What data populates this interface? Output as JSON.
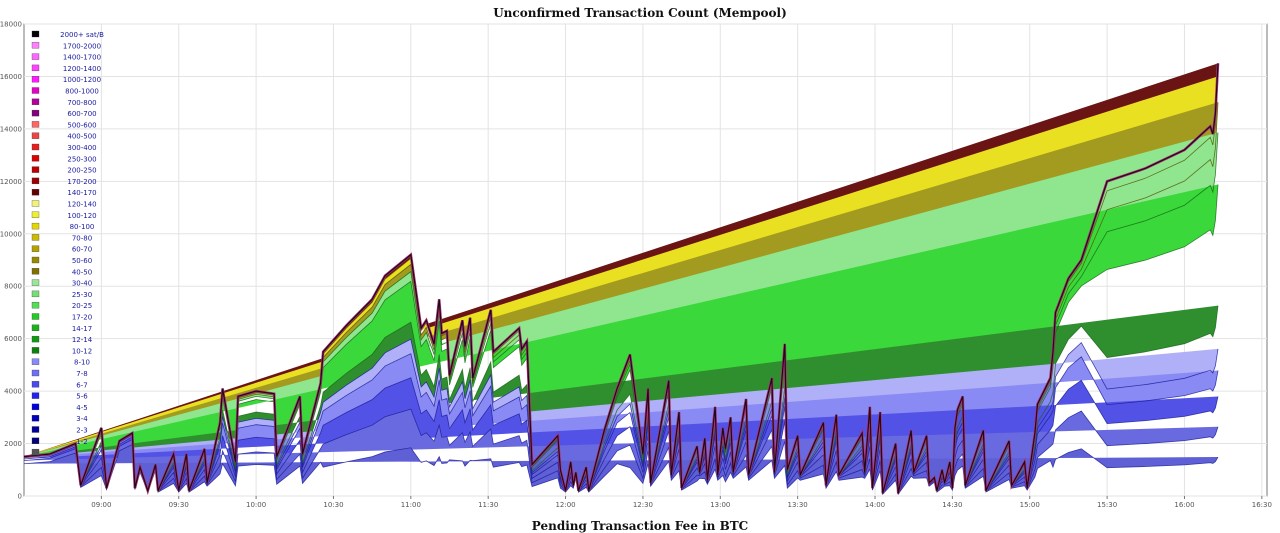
{
  "title": "Unconfirmed Transaction Count (Mempool)",
  "next_chart_title": "Pending Transaction Fee in BTC",
  "chart_data": {
    "type": "area",
    "stacked": true,
    "title": "Unconfirmed Transaction Count (Mempool)",
    "xlabel": "",
    "ylabel": "",
    "ylim": [
      0,
      18000
    ],
    "xlim": [
      "08:30",
      "16:32"
    ],
    "yticks": [
      "0",
      "2000",
      "4000",
      "6000",
      "8000",
      "10000",
      "12000",
      "14000",
      "16000",
      "18000"
    ],
    "xticks": [
      "09:00",
      "09:30",
      "10:00",
      "10:30",
      "11:00",
      "11:30",
      "12:00",
      "12:30",
      "13:00",
      "13:30",
      "14:00",
      "14:30",
      "15:00",
      "15:30",
      "16:00",
      "16:30"
    ],
    "grid": true,
    "legend_position": "top-left",
    "legend": [
      {
        "label": "2000+ sat/B",
        "color": "#000000"
      },
      {
        "label": "1700-2000",
        "color": "#ff80ff"
      },
      {
        "label": "1400-1700",
        "color": "#ff66ff"
      },
      {
        "label": "1200-1400",
        "color": "#ff40ff"
      },
      {
        "label": "1000-1200",
        "color": "#ff1aff"
      },
      {
        "label": "800-1000",
        "color": "#e600c8"
      },
      {
        "label": "700-800",
        "color": "#b30099"
      },
      {
        "label": "600-700",
        "color": "#800080"
      },
      {
        "label": "500-600",
        "color": "#ff6666"
      },
      {
        "label": "400-500",
        "color": "#ee4444"
      },
      {
        "label": "300-400",
        "color": "#e62020"
      },
      {
        "label": "250-300",
        "color": "#dd0000"
      },
      {
        "label": "200-250",
        "color": "#bb0000"
      },
      {
        "label": "170-200",
        "color": "#990000"
      },
      {
        "label": "140-170",
        "color": "#660000"
      },
      {
        "label": "120-140",
        "color": "#f2f27a"
      },
      {
        "label": "100-120",
        "color": "#eeee33"
      },
      {
        "label": "80-100",
        "color": "#e6d600"
      },
      {
        "label": "70-80",
        "color": "#ccbb00"
      },
      {
        "label": "60-70",
        "color": "#b3a200"
      },
      {
        "label": "50-60",
        "color": "#998800"
      },
      {
        "label": "40-50",
        "color": "#7f7000"
      },
      {
        "label": "30-40",
        "color": "#99e699"
      },
      {
        "label": "25-30",
        "color": "#77dd77"
      },
      {
        "label": "20-25",
        "color": "#55dd55"
      },
      {
        "label": "17-20",
        "color": "#22cc22"
      },
      {
        "label": "14-17",
        "color": "#19b319"
      },
      {
        "label": "12-14",
        "color": "#129912"
      },
      {
        "label": "10-12",
        "color": "#0c800c"
      },
      {
        "label": "8-10",
        "color": "#8888ff"
      },
      {
        "label": "7-8",
        "color": "#6e6ef5"
      },
      {
        "label": "6-7",
        "color": "#4a4aee"
      },
      {
        "label": "5-6",
        "color": "#2222ee"
      },
      {
        "label": "4-5",
        "color": "#0000dd"
      },
      {
        "label": "3-4",
        "color": "#0000bb"
      },
      {
        "label": "2-3",
        "color": "#000099"
      },
      {
        "label": "1-2",
        "color": "#000077"
      },
      {
        "label": "",
        "color": "#555555"
      }
    ],
    "bands": [
      {
        "name": "1-2",
        "color": "#5f5fd6"
      },
      {
        "name": "2-3",
        "color": "#6a6ae0"
      },
      {
        "name": "3-5",
        "color": "#5252e6"
      },
      {
        "name": "5-8",
        "color": "#8a8af5"
      },
      {
        "name": "8-10",
        "color": "#b0b0f8"
      },
      {
        "name": "10-14",
        "color": "#2f8f2f"
      },
      {
        "name": "14-20",
        "color": "#3ad83a"
      },
      {
        "name": "20-40",
        "color": "#8fe68f"
      },
      {
        "name": "40-80",
        "color": "#a39a20"
      },
      {
        "name": "80-140",
        "color": "#e8e020"
      },
      {
        "name": "140+",
        "color": "#6b1414"
      }
    ],
    "x": [
      "08:30",
      "08:40",
      "08:45",
      "08:50",
      "08:52",
      "09:00",
      "09:02",
      "09:07",
      "09:12",
      "09:13",
      "09:15",
      "09:18",
      "09:21",
      "09:22",
      "09:28",
      "09:30",
      "09:33",
      "09:34",
      "09:40",
      "09:41",
      "09:46",
      "09:47",
      "09:52",
      "09:53",
      "10:00",
      "10:07",
      "10:08",
      "10:17",
      "10:18",
      "10:25",
      "10:26",
      "10:35",
      "10:45",
      "10:50",
      "11:00",
      "11:04",
      "11:06",
      "11:09",
      "11:11",
      "11:12",
      "11:14",
      "11:15",
      "11:20",
      "11:21",
      "11:23",
      "11:24",
      "11:31",
      "11:32",
      "11:42",
      "11:43",
      "11:45",
      "11:47",
      "11:57",
      "11:58",
      "12:00",
      "12:02",
      "12:03",
      "12:04",
      "12:05",
      "12:08",
      "12:09",
      "12:15",
      "12:20",
      "12:25",
      "12:30",
      "12:32",
      "12:33",
      "12:40",
      "12:41",
      "12:44",
      "12:45",
      "12:51",
      "12:52",
      "12:54",
      "12:55",
      "12:58",
      "12:59",
      "13:01",
      "13:02",
      "13:04",
      "13:05",
      "13:10",
      "13:11",
      "13:20",
      "13:21",
      "13:25",
      "13:26",
      "13:30",
      "13:31",
      "13:40",
      "13:41",
      "13:45",
      "13:46",
      "13:55",
      "13:56",
      "13:58",
      "13:59",
      "14:02",
      "14:03",
      "14:08",
      "14:09",
      "14:14",
      "14:15",
      "14:20",
      "14:21",
      "14:23",
      "14:24",
      "14:26",
      "14:27",
      "14:29",
      "14:30",
      "14:31",
      "14:32",
      "14:34",
      "14:35",
      "14:42",
      "14:43",
      "14:52",
      "14:53",
      "14:58",
      "14:59",
      "15:02",
      "15:03",
      "15:08",
      "15:09",
      "15:10",
      "15:15",
      "15:20",
      "15:30",
      "15:45",
      "16:00",
      "16:10",
      "16:11",
      "16:12",
      "16:13",
      "16:20",
      "16:32"
    ],
    "series_total": [
      1500,
      1600,
      1800,
      2000,
      400,
      2600,
      300,
      2100,
      2400,
      300,
      1100,
      200,
      1200,
      200,
      1600,
      200,
      1600,
      200,
      1800,
      500,
      2800,
      4100,
      1300,
      3800,
      4000,
      3900,
      1500,
      3800,
      1600,
      4300,
      5500,
      6500,
      7500,
      8400,
      9200,
      6400,
      6700,
      5800,
      7500,
      6200,
      6300,
      4600,
      6700,
      5700,
      6800,
      4500,
      7100,
      5500,
      6400,
      5600,
      5900,
      1200,
      2300,
      1000,
      200,
      1300,
      400,
      900,
      200,
      1100,
      200,
      2500,
      4100,
      5400,
      1600,
      4100,
      500,
      4400,
      800,
      3200,
      300,
      1900,
      900,
      2200,
      600,
      3400,
      800,
      2600,
      1800,
      3000,
      900,
      3700,
      800,
      4500,
      900,
      5800,
      1000,
      2300,
      800,
      2800,
      400,
      3100,
      800,
      2400,
      900,
      3400,
      300,
      3200,
      100,
      2000,
      100,
      2500,
      900,
      2300,
      500,
      700,
      200,
      1000,
      500,
      1300,
      300,
      2600,
      3300,
      3800,
      400,
      2500,
      200,
      2100,
      400,
      1300,
      300,
      2400,
      3500,
      4500,
      5500,
      7000,
      8300,
      9000,
      12000,
      12500,
      13200,
      14100,
      13800,
      14600,
      16500
    ]
  }
}
